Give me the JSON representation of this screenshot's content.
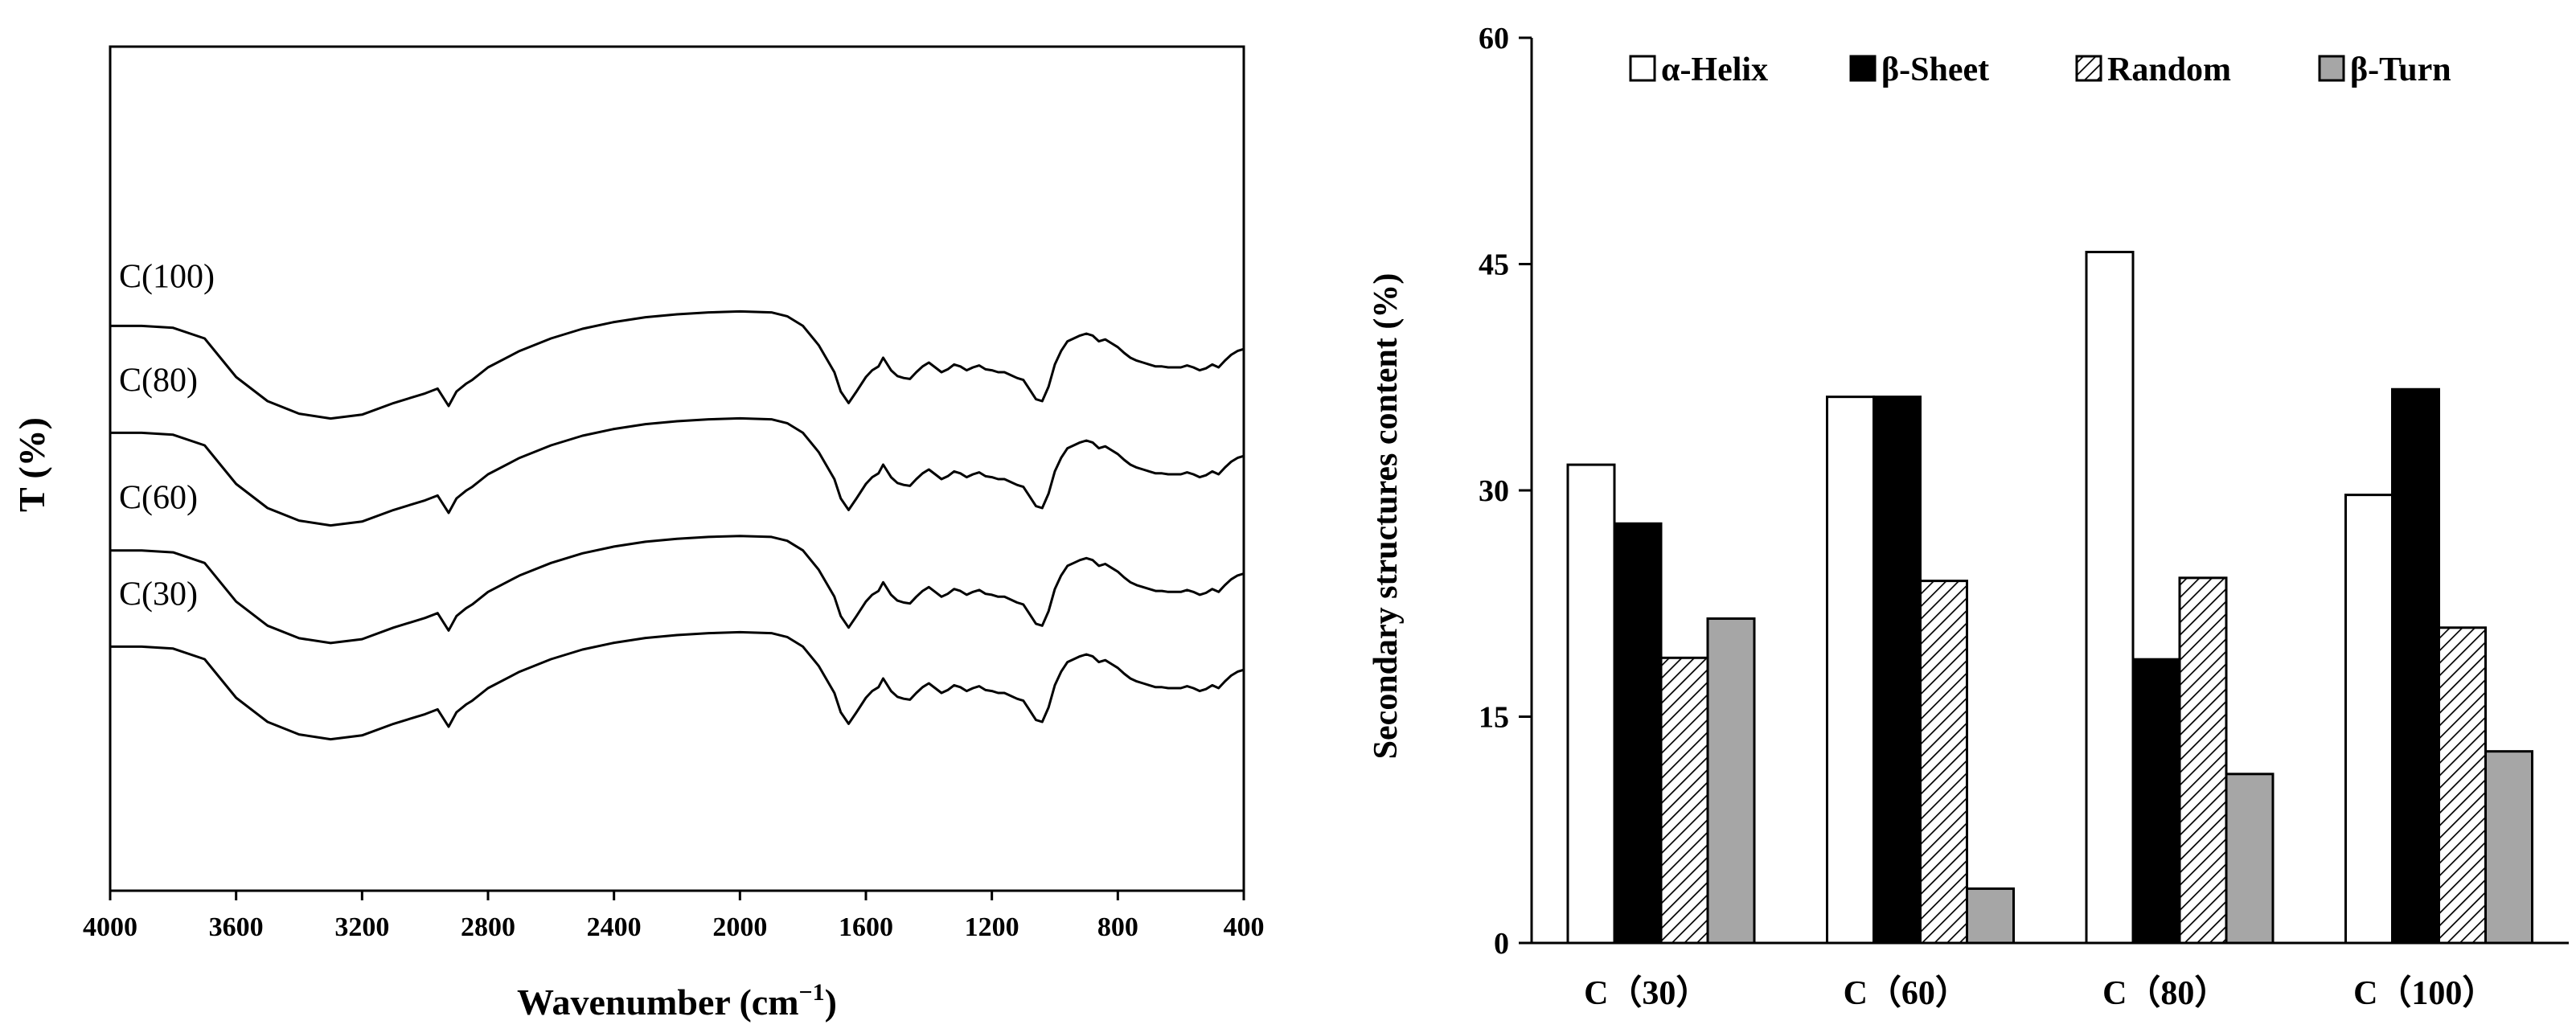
{
  "chart_data": [
    {
      "type": "line",
      "title": "",
      "xlabel": "Wavenumber (cm",
      "xlabel_superscript": "−1",
      "xlabel_close": ")",
      "ylabel": "T (%)",
      "xlim": [
        4000,
        400
      ],
      "x_ticks": [
        "4000",
        "3600",
        "3200",
        "2800",
        "2400",
        "2000",
        "1600",
        "1200",
        "800",
        "400"
      ],
      "y_ticks_visible": false,
      "series": [
        {
          "name": "C(100)",
          "offset": 3.0
        },
        {
          "name": "C(80)",
          "offset": 2.0
        },
        {
          "name": "C(60)",
          "offset": 0.9
        },
        {
          "name": "C(30)",
          "offset": 0.0
        }
      ],
      "profile": {
        "x": [
          4000,
          3900,
          3800,
          3700,
          3650,
          3600,
          3500,
          3400,
          3300,
          3200,
          3100,
          3000,
          2960,
          2925,
          2900,
          2870,
          2850,
          2800,
          2700,
          2600,
          2500,
          2400,
          2300,
          2200,
          2100,
          2000,
          1900,
          1850,
          1800,
          1750,
          1700,
          1680,
          1655,
          1630,
          1600,
          1580,
          1560,
          1545,
          1520,
          1500,
          1480,
          1460,
          1440,
          1420,
          1400,
          1380,
          1360,
          1340,
          1320,
          1300,
          1280,
          1260,
          1240,
          1220,
          1200,
          1180,
          1160,
          1140,
          1120,
          1100,
          1080,
          1060,
          1040,
          1020,
          1000,
          980,
          960,
          940,
          920,
          900,
          880,
          860,
          840,
          820,
          800,
          780,
          760,
          740,
          720,
          700,
          680,
          660,
          640,
          620,
          600,
          580,
          560,
          540,
          520,
          500,
          480,
          460,
          440,
          420,
          400
        ],
        "y": [
          0.98,
          0.98,
          0.96,
          0.85,
          0.65,
          0.45,
          0.2,
          0.07,
          0.02,
          0.06,
          0.18,
          0.28,
          0.33,
          0.15,
          0.3,
          0.38,
          0.42,
          0.55,
          0.72,
          0.85,
          0.95,
          1.02,
          1.07,
          1.1,
          1.12,
          1.13,
          1.12,
          1.08,
          0.98,
          0.78,
          0.5,
          0.3,
          0.18,
          0.3,
          0.45,
          0.52,
          0.56,
          0.65,
          0.52,
          0.46,
          0.44,
          0.43,
          0.5,
          0.56,
          0.6,
          0.55,
          0.5,
          0.53,
          0.58,
          0.56,
          0.52,
          0.55,
          0.57,
          0.53,
          0.52,
          0.5,
          0.5,
          0.47,
          0.44,
          0.42,
          0.32,
          0.22,
          0.2,
          0.35,
          0.58,
          0.72,
          0.82,
          0.85,
          0.88,
          0.9,
          0.88,
          0.82,
          0.84,
          0.8,
          0.76,
          0.7,
          0.65,
          0.62,
          0.6,
          0.58,
          0.56,
          0.56,
          0.55,
          0.55,
          0.55,
          0.57,
          0.55,
          0.52,
          0.54,
          0.58,
          0.55,
          0.62,
          0.68,
          0.72,
          0.74
        ]
      }
    },
    {
      "type": "bar",
      "title": "",
      "xlabel": "",
      "ylabel": "Secondary structures content (%)",
      "ylim": [
        0,
        60
      ],
      "y_ticks": [
        "0",
        "15",
        "30",
        "45",
        "60"
      ],
      "categories": [
        "C（30）",
        "C（60）",
        "C（80）",
        "C（100）"
      ],
      "legend_position": "top",
      "series": [
        {
          "name": "α-Helix",
          "fill": "white",
          "values": [
            31.7,
            36.2,
            45.8,
            29.7
          ]
        },
        {
          "name": "β-Sheet",
          "fill": "black",
          "values": [
            27.8,
            36.2,
            18.8,
            36.7
          ]
        },
        {
          "name": "Random",
          "fill": "hatch",
          "values": [
            18.9,
            24.0,
            24.2,
            20.9
          ]
        },
        {
          "name": "β-Turn",
          "fill": "gray",
          "values": [
            21.5,
            3.6,
            11.2,
            12.7
          ]
        }
      ],
      "colors": {
        "black": "#000000",
        "gray": "#a6a6a6",
        "white": "#ffffff"
      }
    }
  ]
}
